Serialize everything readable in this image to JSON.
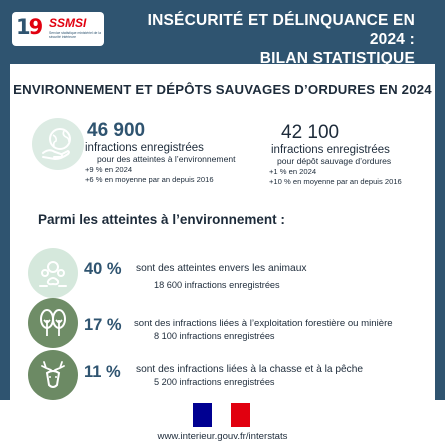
{
  "header": {
    "logo_mark": "1",
    "logo_mark_accent": "9",
    "logo_name": "SSMSI",
    "logo_sub": "Service statistique ministériel de la sécurité intérieure",
    "title_line1": "INSÉCURITÉ ET DÉLINQUANCE EN 2024 :",
    "title_line2": "BILAN STATISTIQUE"
  },
  "subtitle": "ENVIRONNEMENT ET DÉPÔTS SAUVAGES D’ORDURES EN 2024",
  "stats": [
    {
      "value": "46 900",
      "label": "infractions enregistrées",
      "detail": "pour des atteintes à l’environnement",
      "change_year": "+9 % en 2024",
      "change_avg": "+6 % en moyenne par an depuis 2016"
    },
    {
      "value": "42 100",
      "label": "infractions enregistrées",
      "detail": "pour dépôt sauvage d’ordures",
      "change_year": "+1 % en 2024",
      "change_avg": "+10 % en moyenne par an depuis 2016"
    }
  ],
  "among_title": "Parmi les atteintes à l’environnement :",
  "breakdown": [
    {
      "pct": "40 %",
      "desc": "sont des atteintes envers les animaux",
      "count": "18 600 infractions enregistrées",
      "icon": "animals-icon"
    },
    {
      "pct": "17 %",
      "desc": "sont des infractions liées à l’exploitation forestière ou minière",
      "count": "8 100 infractions enregistrées",
      "icon": "trees-icon"
    },
    {
      "pct": "11 %",
      "desc": "sont des infractions liées à la chasse et à la pêche",
      "count": "5 200 infractions enregistrées",
      "icon": "deer-icon"
    }
  ],
  "footer": {
    "url": "www.interieur.gouv.fr/interstats"
  },
  "colors": {
    "navy": "#2f5470",
    "red": "#e1000f",
    "text": "#1d2b3a",
    "green_light": "#d5e8dc",
    "green_dark": "#6f8d67"
  }
}
